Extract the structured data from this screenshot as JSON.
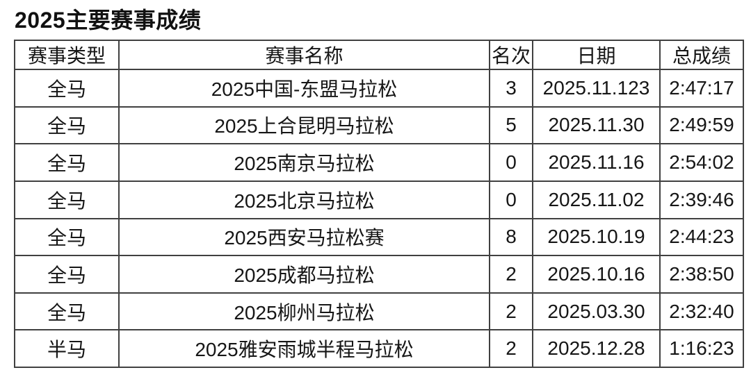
{
  "title": "2025主要赛事成绩",
  "table": {
    "columns": [
      "赛事类型",
      "赛事名称",
      "名次",
      "日期",
      "总成绩"
    ],
    "rows": [
      [
        "全马",
        "2025中国-东盟马拉松",
        "3",
        "2025.11.123",
        "2:47:17"
      ],
      [
        "全马",
        "2025上合昆明马拉松",
        "5",
        "2025.11.30",
        "2:49:59"
      ],
      [
        "全马",
        "2025南京马拉松",
        "0",
        "2025.11.16",
        "2:54:02"
      ],
      [
        "全马",
        "2025北京马拉松",
        "0",
        "2025.11.02",
        "2:39:46"
      ],
      [
        "全马",
        "2025西安马拉松赛",
        "8",
        "2025.10.19",
        "2:44:23"
      ],
      [
        "全马",
        "2025成都马拉松",
        "2",
        "2025.10.16",
        "2:38:50"
      ],
      [
        "全马",
        "2025柳州马拉松",
        "2",
        "2025.03.30",
        "2:32:40"
      ],
      [
        "半马",
        "2025雅安雨城半程马拉松",
        "2",
        "2025.12.28",
        "1:16:23"
      ]
    ]
  },
  "colors": {
    "background": "#ffffff",
    "text": "#161616",
    "border": "#404040"
  },
  "chart_data": {
    "type": "table",
    "title": "2025主要赛事成绩",
    "columns": [
      "赛事类型",
      "赛事名称",
      "名次",
      "日期",
      "总成绩"
    ],
    "rows": [
      [
        "全马",
        "2025中国-东盟马拉松",
        "3",
        "2025.11.123",
        "2:47:17"
      ],
      [
        "全马",
        "2025上合昆明马拉松",
        "5",
        "2025.11.30",
        "2:49:59"
      ],
      [
        "全马",
        "2025南京马拉松",
        "0",
        "2025.11.16",
        "2:54:02"
      ],
      [
        "全马",
        "2025北京马拉松",
        "0",
        "2025.11.02",
        "2:39:46"
      ],
      [
        "全马",
        "2025西安马拉松赛",
        "8",
        "2025.10.19",
        "2:44:23"
      ],
      [
        "全马",
        "2025成都马拉松",
        "2",
        "2025.10.16",
        "2:38:50"
      ],
      [
        "全马",
        "2025柳州马拉松",
        "2",
        "2025.03.30",
        "2:32:40"
      ],
      [
        "半马",
        "2025雅安雨城半程马拉松",
        "2",
        "2025.12.28",
        "1:16:23"
      ]
    ],
    "layout": {
      "grid": true,
      "header_row": true
    }
  }
}
